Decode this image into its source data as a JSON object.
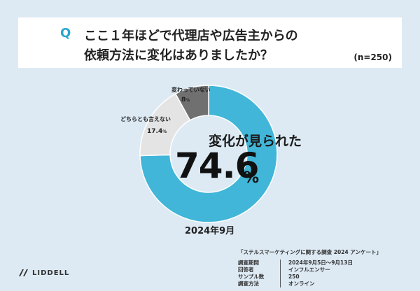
{
  "question": {
    "mark": "Q",
    "line1": "ここ１年ほどで代理店や広告主からの",
    "line2": "依頼方法に変化はありましたか？",
    "sample": "(n=250)"
  },
  "chart_data": {
    "type": "pie",
    "style": "donut",
    "categories": [
      "変化が見られた",
      "どちらとも言えない",
      "変わっていない"
    ],
    "values": [
      74.6,
      17.4,
      8
    ],
    "colors": [
      "#41b6d8",
      "#e4e4e4",
      "#707070"
    ],
    "unit": "%",
    "callout": {
      "label": "変化が見られた",
      "value": "74.6",
      "unit": "%"
    },
    "labels": [
      {
        "text": "どちらとも言えない",
        "value": "17.4",
        "unit": "%"
      },
      {
        "text": "変わっていない",
        "value": "8",
        "unit": "%"
      }
    ]
  },
  "period": "2024年9月",
  "brand": "LIDDELL",
  "survey": {
    "title": "「ステルスマーケティングに関する調査 2024 アンケート」",
    "rows": [
      {
        "key": "調査期間",
        "value": "2024年9月5日～9月13日"
      },
      {
        "key": "回答者",
        "value": "インフルエンサー"
      },
      {
        "key": "サンプル数",
        "value": "250"
      },
      {
        "key": "調査方法",
        "value": "オンライン"
      }
    ]
  }
}
